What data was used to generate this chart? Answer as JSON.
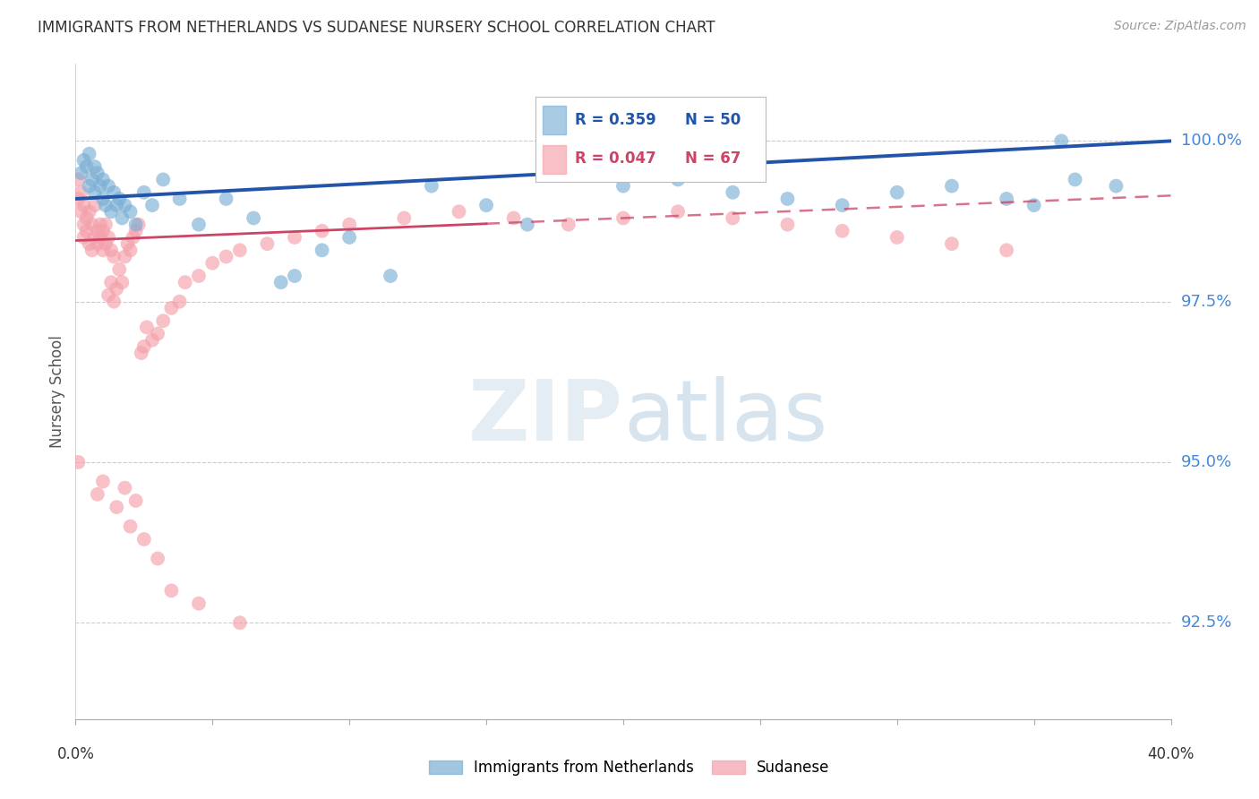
{
  "title": "IMMIGRANTS FROM NETHERLANDS VS SUDANESE NURSERY SCHOOL CORRELATION CHART",
  "source": "Source: ZipAtlas.com",
  "ylabel": "Nursery School",
  "yticks": [
    92.5,
    95.0,
    97.5,
    100.0
  ],
  "ytick_labels": [
    "92.5%",
    "95.0%",
    "97.5%",
    "100.0%"
  ],
  "xmin": 0.0,
  "xmax": 40.0,
  "ymin": 91.0,
  "ymax": 101.2,
  "legend_r1": "R = 0.359",
  "legend_n1": "N = 50",
  "legend_r2": "R = 0.047",
  "legend_n2": "N = 67",
  "legend_label1": "Immigrants from Netherlands",
  "legend_label2": "Sudanese",
  "color_blue": "#7BAFD4",
  "color_pink": "#F4A0AA",
  "color_blue_line": "#2255AA",
  "color_pink_line": "#CC4466",
  "blue_x": [
    0.2,
    0.3,
    0.4,
    0.5,
    0.5,
    0.6,
    0.7,
    0.7,
    0.8,
    0.9,
    1.0,
    1.0,
    1.1,
    1.2,
    1.3,
    1.4,
    1.5,
    1.6,
    1.7,
    1.8,
    2.0,
    2.2,
    2.5,
    2.8,
    3.2,
    3.8,
    4.5,
    5.5,
    6.5,
    7.5,
    8.0,
    9.0,
    10.0,
    11.5,
    13.0,
    15.0,
    16.5,
    18.0,
    20.0,
    22.0,
    24.0,
    26.0,
    28.0,
    30.0,
    32.0,
    34.0,
    35.0,
    36.5,
    38.0,
    36.0
  ],
  "blue_y": [
    99.5,
    99.7,
    99.6,
    99.3,
    99.8,
    99.4,
    99.6,
    99.2,
    99.5,
    99.3,
    99.1,
    99.4,
    99.0,
    99.3,
    98.9,
    99.2,
    99.0,
    99.1,
    98.8,
    99.0,
    98.9,
    98.7,
    99.2,
    99.0,
    99.4,
    99.1,
    98.7,
    99.1,
    98.8,
    97.8,
    97.9,
    98.3,
    98.5,
    97.9,
    99.3,
    99.0,
    98.7,
    99.6,
    99.3,
    99.4,
    99.2,
    99.1,
    99.0,
    99.2,
    99.3,
    99.1,
    99.0,
    99.4,
    99.3,
    100.0
  ],
  "pink_x": [
    0.1,
    0.1,
    0.2,
    0.2,
    0.3,
    0.3,
    0.3,
    0.4,
    0.4,
    0.5,
    0.5,
    0.6,
    0.6,
    0.7,
    0.7,
    0.8,
    0.8,
    0.9,
    0.9,
    1.0,
    1.0,
    1.1,
    1.1,
    1.2,
    1.2,
    1.3,
    1.3,
    1.4,
    1.4,
    1.5,
    1.6,
    1.7,
    1.8,
    1.9,
    2.0,
    2.1,
    2.2,
    2.3,
    2.4,
    2.5,
    2.6,
    2.8,
    3.0,
    3.2,
    3.5,
    3.8,
    4.0,
    4.5,
    5.0,
    5.5,
    6.0,
    7.0,
    8.0,
    9.0,
    10.0,
    12.0,
    14.0,
    16.0,
    18.0,
    20.0,
    22.0,
    24.0,
    26.0,
    28.0,
    30.0,
    32.0,
    34.0
  ],
  "pink_y": [
    99.4,
    99.1,
    98.9,
    99.2,
    98.7,
    99.0,
    98.5,
    98.8,
    98.6,
    98.4,
    98.9,
    98.3,
    98.7,
    98.5,
    99.0,
    98.6,
    98.4,
    98.7,
    98.5,
    98.3,
    98.6,
    98.4,
    98.7,
    98.5,
    97.6,
    97.8,
    98.3,
    97.5,
    98.2,
    97.7,
    98.0,
    97.8,
    98.2,
    98.4,
    98.3,
    98.5,
    98.6,
    98.7,
    96.7,
    96.8,
    97.1,
    96.9,
    97.0,
    97.2,
    97.4,
    97.5,
    97.8,
    97.9,
    98.1,
    98.2,
    98.3,
    98.4,
    98.5,
    98.6,
    98.7,
    98.8,
    98.9,
    98.8,
    98.7,
    98.8,
    98.9,
    98.8,
    98.7,
    98.6,
    98.5,
    98.4,
    98.3
  ],
  "pink_low_x": [
    0.1,
    0.8,
    1.0,
    1.5,
    1.8,
    2.0,
    2.2,
    2.5,
    3.0,
    3.5,
    4.5,
    6.0
  ],
  "pink_low_y": [
    95.0,
    94.5,
    94.7,
    94.3,
    94.6,
    94.0,
    94.4,
    93.8,
    93.5,
    93.0,
    92.8,
    92.5
  ]
}
